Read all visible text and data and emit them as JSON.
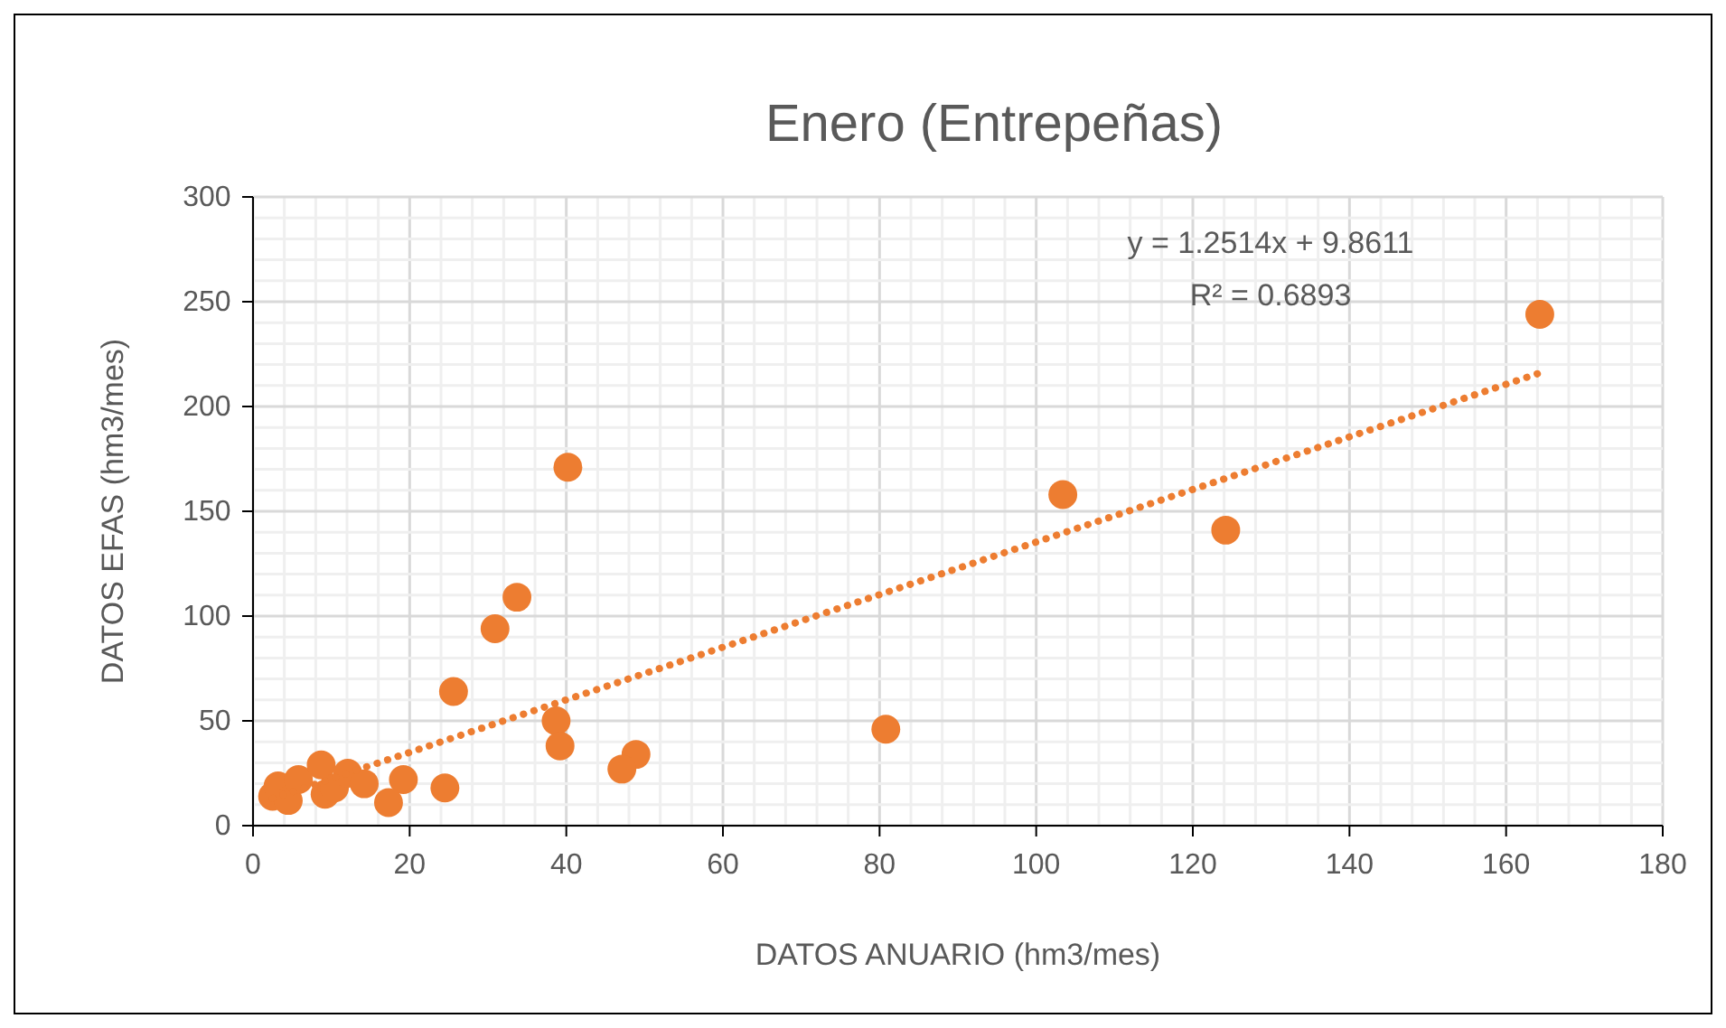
{
  "chart_data": {
    "type": "scatter",
    "title": "Enero (Entrepeñas)",
    "xlabel": "DATOS ANUARIO (hm3/mes)",
    "ylabel": "DATOS EFAS (hm3/mes)",
    "xlim": [
      0,
      180
    ],
    "xticks": [
      0,
      20,
      40,
      60,
      80,
      100,
      120,
      140,
      160,
      180
    ],
    "ylim": [
      0,
      300
    ],
    "yticks": [
      0,
      50,
      100,
      150,
      200,
      250,
      300
    ],
    "grid": true,
    "marker": "circle",
    "annotations": [
      "y = 1.2514x + 9.8611",
      "R² = 0.6893"
    ],
    "series": [
      {
        "color": "#ed7d31",
        "x": [
          164.3,
          103.4,
          124.2,
          80.8,
          40.2,
          33.7,
          30.9,
          25.6,
          38.7,
          39.2,
          48.9,
          47.1,
          24.5,
          17.3,
          19.2,
          2.5,
          3.2,
          4.5,
          5.8,
          8.7,
          9.2,
          10.4,
          12.1,
          14.2
        ],
        "values": [
          244,
          158,
          141,
          46,
          171,
          109,
          94,
          64,
          50,
          38,
          34,
          27,
          18,
          11,
          22,
          14,
          19,
          12,
          22,
          29,
          15,
          18,
          25,
          20
        ]
      },
      {
        "type": "line",
        "color": "#ed7d31",
        "line_style": "dotted",
        "marker": "none",
        "x": [
          2.5,
          164.3
        ],
        "values": [
          13,
          216
        ]
      }
    ]
  }
}
